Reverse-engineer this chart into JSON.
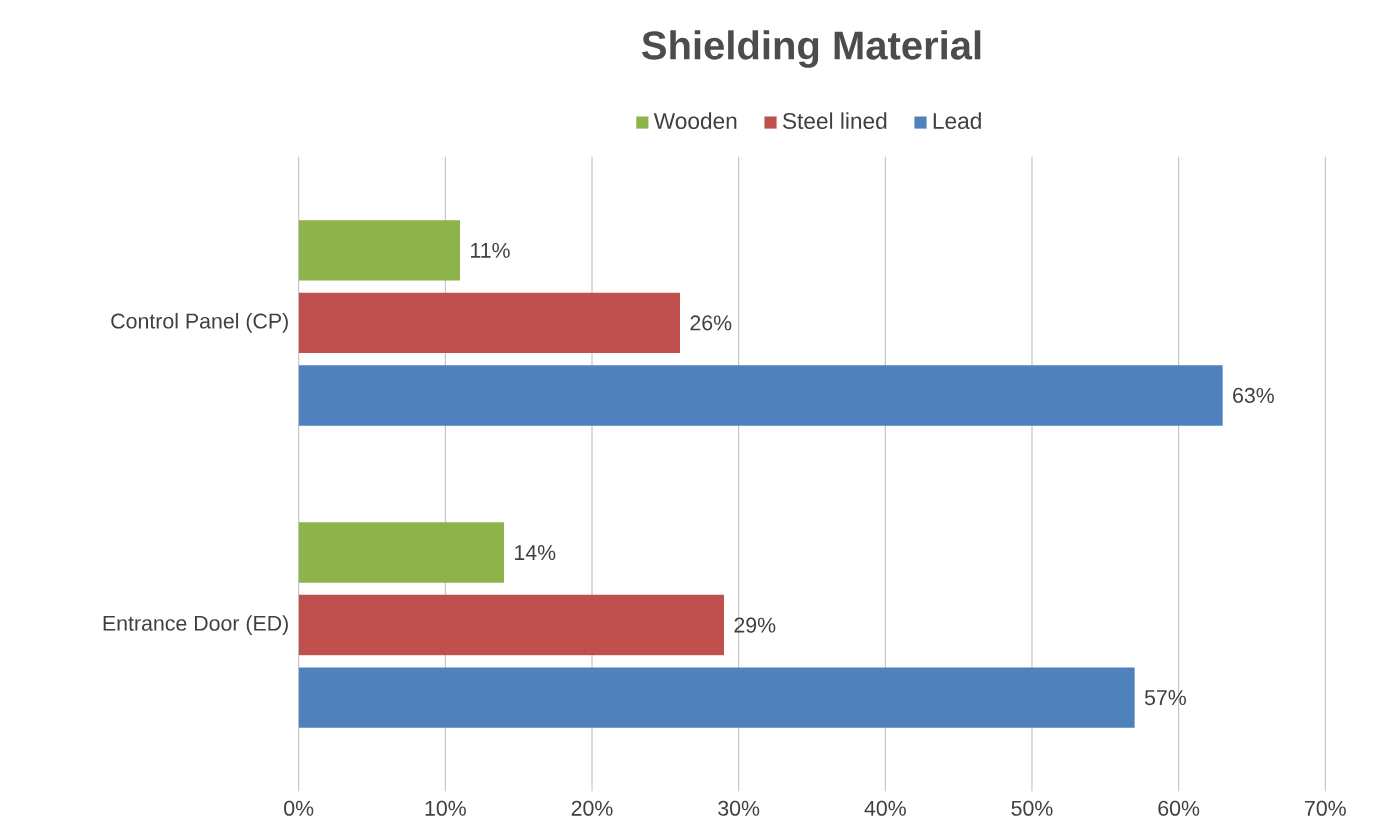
{
  "chart_data": {
    "type": "bar",
    "orientation": "horizontal",
    "title": "Shielding Material",
    "categories": [
      "Control Panel (CP)",
      "Entrance Door (ED)"
    ],
    "series": [
      {
        "name": "Wooden",
        "color": "#8db34a",
        "values": [
          11,
          14
        ],
        "value_labels": [
          "11%",
          "14%"
        ]
      },
      {
        "name": "Steel lined",
        "color": "#c0504d",
        "values": [
          26,
          29
        ],
        "value_labels": [
          "26%",
          "29%"
        ]
      },
      {
        "name": "Lead",
        "color": "#4f81bd",
        "values": [
          63,
          57
        ],
        "value_labels": [
          "63%",
          "57%"
        ]
      }
    ],
    "xlim": [
      0,
      70
    ],
    "xticks": [
      {
        "value": 0,
        "label": "0%"
      },
      {
        "value": 10,
        "label": "10%"
      },
      {
        "value": 20,
        "label": "20%"
      },
      {
        "value": 30,
        "label": "30%"
      },
      {
        "value": 40,
        "label": "40%"
      },
      {
        "value": 50,
        "label": "50%"
      },
      {
        "value": 60,
        "label": "60%"
      },
      {
        "value": 70,
        "label": "70%"
      }
    ],
    "grid": "x",
    "legend": "top"
  }
}
